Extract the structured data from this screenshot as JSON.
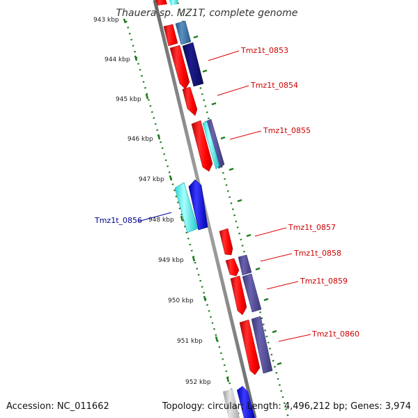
{
  "title": "Thauera sp. MZ1T, complete genome",
  "footer": {
    "accession": "Accession: NC_011662",
    "summary": "Topology: circular; Length: 4,496,212 bp; Genes: 3,974"
  },
  "ticks": [
    "943 kbp",
    "944 kbp",
    "945 kbp",
    "946 kbp",
    "947 kbp",
    "948 kbp",
    "949 kbp",
    "950 kbp",
    "951 kbp",
    "952 kbp"
  ],
  "colors": {
    "backbone": "#8a8a8a",
    "tick_dots": "#1a7a1a",
    "forward_gene": "#ff1a1a",
    "reverse_gene": "#1a1aff",
    "label_forward": "#cc0000",
    "label_reverse": "#00008b"
  },
  "gene_labels": [
    {
      "text": "Tmz1t_0853",
      "strand": "forward"
    },
    {
      "text": "Tmz1t_0854",
      "strand": "forward"
    },
    {
      "text": "Tmz1t_0855",
      "strand": "forward"
    },
    {
      "text": "Tmz1t_0856",
      "strand": "reverse"
    },
    {
      "text": "Tmz1t_0857",
      "strand": "forward"
    },
    {
      "text": "Tmz1t_0858",
      "strand": "forward"
    },
    {
      "text": "Tmz1t_0859",
      "strand": "forward"
    },
    {
      "text": "Tmz1t_0860",
      "strand": "forward"
    }
  ]
}
